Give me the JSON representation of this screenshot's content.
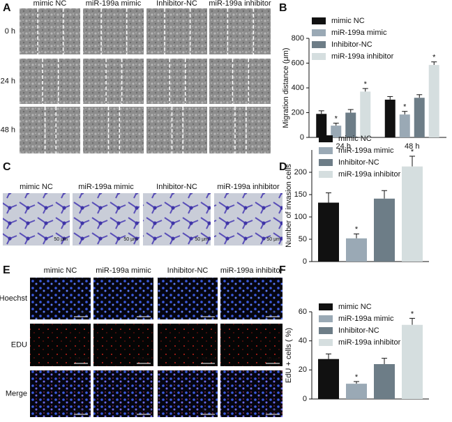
{
  "panel_a": {
    "letter": "A",
    "columns": [
      "mimic NC",
      "miR-199a mimic",
      "Inhibitor-NC",
      "miR-199a inhibitor"
    ],
    "rows": [
      "0 h",
      "24 h",
      "48 h"
    ]
  },
  "panel_c": {
    "letter": "C",
    "columns": [
      "mimic NC",
      "miR-199a mimic",
      "Inhibitor-NC",
      "miR-199a inhibitor"
    ],
    "scale_bar": "50 μm"
  },
  "panel_e": {
    "letter": "E",
    "columns": [
      "mimic NC",
      "miR-199a mimic",
      "Inhibitor-NC",
      "miR-199a inhibitor"
    ],
    "rows": [
      "Hoechst",
      "EDU",
      "Merge"
    ],
    "scale_bar": "50 μm"
  },
  "chart_data": [
    {
      "type": "bar",
      "panel_label": "B",
      "y_label": "Migration distance (μm)",
      "categories": [
        "24 h",
        "48 h"
      ],
      "series": [
        {
          "name": "mimic NC",
          "color": "#111111",
          "values": [
            190,
            305
          ],
          "errors": [
            25,
            25
          ]
        },
        {
          "name": "miR-199a mimic",
          "color": "#9aa9b5",
          "values": [
            95,
            185
          ],
          "errors": [
            20,
            25
          ],
          "annotation": "*"
        },
        {
          "name": "Inhibitor-NC",
          "color": "#6d7d87",
          "values": [
            200,
            320
          ],
          "errors": [
            25,
            25
          ]
        },
        {
          "name": "miR-199a inhibitor",
          "color": "#d5dedf",
          "values": [
            370,
            585
          ],
          "errors": [
            25,
            25
          ],
          "annotation": "*"
        }
      ],
      "ylim": [
        0,
        800
      ],
      "yticks": [
        0,
        200,
        400,
        600,
        800
      ],
      "legend": "upper left"
    },
    {
      "type": "bar",
      "panel_label": "D",
      "y_label": "Number of invasion cells",
      "categories": [
        null
      ],
      "series": [
        {
          "name": "mimic NC",
          "color": "#111111",
          "values": [
            132
          ],
          "errors": [
            22
          ]
        },
        {
          "name": "miR-199a mimic",
          "color": "#9aa9b5",
          "values": [
            52
          ],
          "errors": [
            10
          ],
          "annotation": "*"
        },
        {
          "name": "Inhibitor-NC",
          "color": "#6d7d87",
          "values": [
            141
          ],
          "errors": [
            18
          ]
        },
        {
          "name": "miR-199a inhibitor",
          "color": "#d5dedf",
          "values": [
            213
          ],
          "errors": [
            23
          ],
          "annotation": "*"
        }
      ],
      "ylim": [
        0,
        250
      ],
      "yticks": [
        0,
        50,
        100,
        150,
        200
      ],
      "legend": "upper left"
    },
    {
      "type": "bar",
      "panel_label": "F",
      "y_label": "EdU + cells ( %)",
      "categories": [
        null
      ],
      "series": [
        {
          "name": "mimic NC",
          "color": "#111111",
          "values": [
            27.5
          ],
          "errors": [
            3.5
          ]
        },
        {
          "name": "miR-199a mimic",
          "color": "#9aa9b5",
          "values": [
            10.5
          ],
          "errors": [
            1.5
          ],
          "annotation": "*"
        },
        {
          "name": "Inhibitor-NC",
          "color": "#6d7d87",
          "values": [
            24
          ],
          "errors": [
            4
          ]
        },
        {
          "name": "miR-199a inhibitor",
          "color": "#d5dedf",
          "values": [
            51
          ],
          "errors": [
            4.5
          ],
          "annotation": "*"
        }
      ],
      "ylim": [
        0,
        60
      ],
      "yticks": [
        0,
        20,
        40,
        60
      ],
      "legend": "upper left"
    }
  ]
}
